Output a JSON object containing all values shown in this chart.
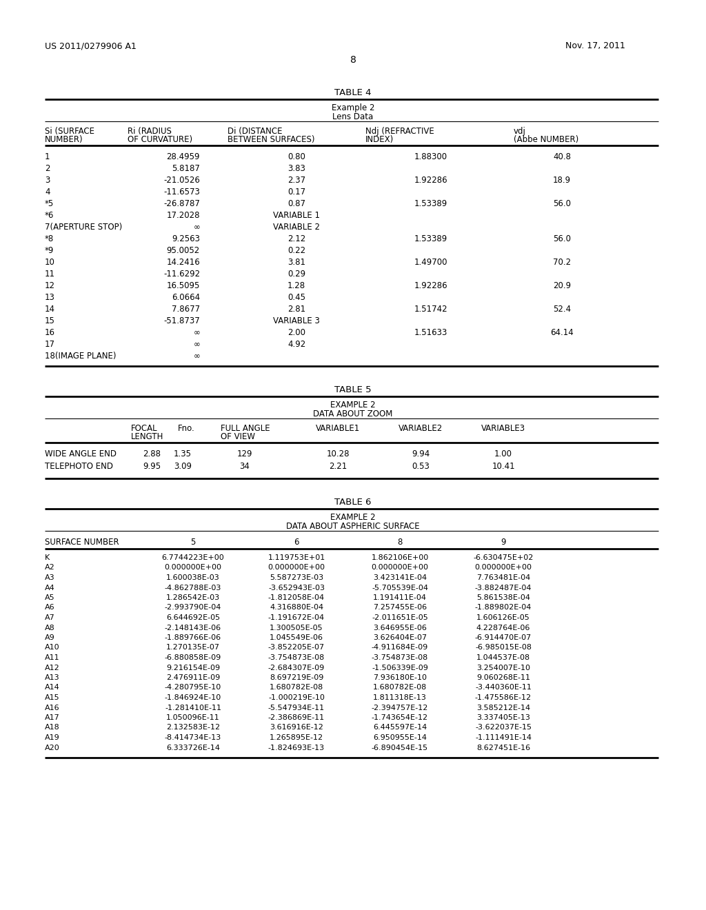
{
  "page_left": "US 2011/0279906 A1",
  "page_right": "Nov. 17, 2011",
  "page_number": "8",
  "background_color": "#ffffff",
  "table4_title": "TABLE 4",
  "table4_subtitle1": "Example 2",
  "table4_subtitle2": "Lens Data",
  "table4_col_headers": [
    [
      "Si (SURFACE",
      "NUMBER)"
    ],
    [
      "Ri (RADIUS",
      "OF CURVATURE)"
    ],
    [
      "Di (DISTANCE",
      "BETWEEN SURFACES)"
    ],
    [
      "Ndj (REFRACTIVE",
      "INDEX)"
    ],
    [
      "vdj",
      "(Abbe NUMBER)"
    ]
  ],
  "table4_rows": [
    [
      "1",
      "28.4959",
      "0.80",
      "1.88300",
      "40.8"
    ],
    [
      "2",
      "5.8187",
      "3.83",
      "",
      ""
    ],
    [
      "3",
      "-21.0526",
      "2.37",
      "1.92286",
      "18.9"
    ],
    [
      "4",
      "-11.6573",
      "0.17",
      "",
      ""
    ],
    [
      "*5",
      "-26.8787",
      "0.87",
      "1.53389",
      "56.0"
    ],
    [
      "*6",
      "17.2028",
      "VARIABLE 1",
      "",
      ""
    ],
    [
      "7(APERTURE STOP)",
      "∞",
      "VARIABLE 2",
      "",
      ""
    ],
    [
      "*8",
      "9.2563",
      "2.12",
      "1.53389",
      "56.0"
    ],
    [
      "*9",
      "95.0052",
      "0.22",
      "",
      ""
    ],
    [
      "10",
      "14.2416",
      "3.81",
      "1.49700",
      "70.2"
    ],
    [
      "11",
      "-11.6292",
      "0.29",
      "",
      ""
    ],
    [
      "12",
      "16.5095",
      "1.28",
      "1.92286",
      "20.9"
    ],
    [
      "13",
      "6.0664",
      "0.45",
      "",
      ""
    ],
    [
      "14",
      "7.8677",
      "2.81",
      "1.51742",
      "52.4"
    ],
    [
      "15",
      "-51.8737",
      "VARIABLE 3",
      "",
      ""
    ],
    [
      "16",
      "∞",
      "2.00",
      "1.51633",
      "64.14"
    ],
    [
      "17",
      "∞",
      "4.92",
      "",
      ""
    ],
    [
      "18(IMAGE PLANE)",
      "∞",
      "",
      "",
      ""
    ]
  ],
  "table5_title": "TABLE 5",
  "table5_subtitle1": "EXAMPLE 2",
  "table5_subtitle2": "DATA ABOUT ZOOM",
  "table5_rows": [
    [
      "WIDE ANGLE END",
      "2.88",
      "1.35",
      "129",
      "10.28",
      "9.94",
      "1.00"
    ],
    [
      "TELEPHOTO END",
      "9.95",
      "3.09",
      "34",
      "2.21",
      "0.53",
      "10.41"
    ]
  ],
  "table6_title": "TABLE 6",
  "table6_subtitle1": "EXAMPLE 2",
  "table6_subtitle2": "DATA ABOUT ASPHERIC SURFACE",
  "table6_col_headers": [
    "SURFACE NUMBER",
    "5",
    "6",
    "8",
    "9"
  ],
  "table6_rows": [
    [
      "K",
      "6.7744223E+00",
      "1.119753E+01",
      "1.862106E+00",
      "-6.630475E+02"
    ],
    [
      "A2",
      "0.000000E+00",
      "0.000000E+00",
      "0.000000E+00",
      "0.000000E+00"
    ],
    [
      "A3",
      "1.600038E-03",
      "5.587273E-03",
      "3.423141E-04",
      "7.763481E-04"
    ],
    [
      "A4",
      "-4.862788E-03",
      "-3.652943E-03",
      "-5.705539E-04",
      "-3.882487E-04"
    ],
    [
      "A5",
      "1.286542E-03",
      "-1.812058E-04",
      "1.191411E-04",
      "5.861538E-04"
    ],
    [
      "A6",
      "-2.993790E-04",
      "4.316880E-04",
      "7.257455E-06",
      "-1.889802E-04"
    ],
    [
      "A7",
      "6.644692E-05",
      "-1.191672E-04",
      "-2.011651E-05",
      "1.606126E-05"
    ],
    [
      "A8",
      "-2.148143E-06",
      "1.300505E-05",
      "3.646955E-06",
      "4.228764E-06"
    ],
    [
      "A9",
      "-1.889766E-06",
      "1.045549E-06",
      "3.626404E-07",
      "-6.914470E-07"
    ],
    [
      "A10",
      "1.270135E-07",
      "-3.852205E-07",
      "-4.911684E-09",
      "-6.985015E-08"
    ],
    [
      "A11",
      "-6.880858E-09",
      "-3.754873E-08",
      "-3.754873E-08",
      "1.044537E-08"
    ],
    [
      "A12",
      "9.216154E-09",
      "-2.684307E-09",
      "-1.506339E-09",
      "3.254007E-10"
    ],
    [
      "A13",
      "2.476911E-09",
      "8.697219E-09",
      "7.936180E-10",
      "9.060268E-11"
    ],
    [
      "A14",
      "-4.280795E-10",
      "1.680782E-08",
      "1.680782E-08",
      "-3.440360E-11"
    ],
    [
      "A15",
      "-1.846924E-10",
      "-1.000219E-10",
      "1.811318E-13",
      "-1.475586E-12"
    ],
    [
      "A16",
      "-1.281410E-11",
      "-5.547934E-11",
      "-2.394757E-12",
      "3.585212E-14"
    ],
    [
      "A17",
      "1.050096E-11",
      "-2.386869E-11",
      "-1.743654E-12",
      "3.337405E-13"
    ],
    [
      "A18",
      "2.132583E-12",
      "3.616916E-12",
      "6.445597E-14",
      "-3.622037E-15"
    ],
    [
      "A19",
      "-8.414734E-13",
      "1.265895E-12",
      "6.950955E-14",
      "-1.111491E-14"
    ],
    [
      "A20",
      "6.333726E-14",
      "-1.824693E-13",
      "-6.890454E-15",
      "8.627451E-16"
    ]
  ]
}
